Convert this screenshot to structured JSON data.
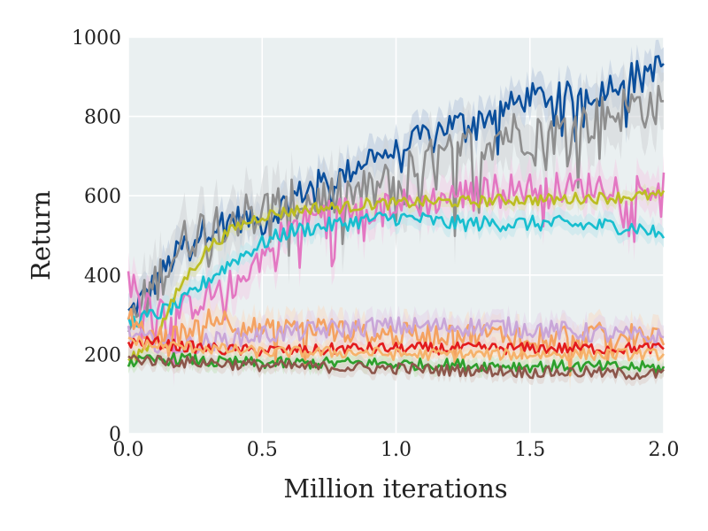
{
  "chart_data": {
    "type": "line",
    "title": "",
    "xlabel": "Million iterations",
    "ylabel": "Return",
    "xlim": [
      0.0,
      2.0
    ],
    "ylim": [
      0,
      1000
    ],
    "xticks": [
      0.0,
      0.5,
      1.0,
      1.5,
      2.0
    ],
    "xtick_labels": [
      "0.0",
      "0.5",
      "1.0",
      "1.5",
      "2.0"
    ],
    "yticks": [
      0,
      200,
      400,
      600,
      800,
      1000
    ],
    "ytick_labels": [
      "0",
      "200",
      "400",
      "600",
      "800",
      "1000"
    ],
    "grid": true,
    "background": "#eaf0f1",
    "legend": "none",
    "shaded_bands": true,
    "series": [
      {
        "color": "#0b4f9c",
        "band": "#b8c9dc",
        "x": [
          0.0,
          0.1,
          0.2,
          0.3,
          0.4,
          0.5,
          0.6,
          0.7,
          0.8,
          0.9,
          1.0,
          1.1,
          1.2,
          1.3,
          1.4,
          1.5,
          1.6,
          1.7,
          1.8,
          1.9,
          2.0
        ],
        "values": [
          300,
          380,
          470,
          520,
          545,
          530,
          590,
          630,
          650,
          700,
          710,
          750,
          780,
          790,
          820,
          850,
          850,
          860,
          880,
          910,
          930
        ],
        "spread": 35
      },
      {
        "color": "#8e8e8e",
        "band": "#d0d3d6",
        "x": [
          0.0,
          0.1,
          0.2,
          0.3,
          0.4,
          0.5,
          0.6,
          0.7,
          0.8,
          0.9,
          1.0,
          1.1,
          1.2,
          1.3,
          1.4,
          1.5,
          1.6,
          1.7,
          1.8,
          1.9,
          2.0
        ],
        "values": [
          260,
          380,
          480,
          530,
          550,
          560,
          580,
          590,
          600,
          610,
          640,
          680,
          700,
          730,
          760,
          760,
          760,
          780,
          810,
          830,
          820
        ],
        "spread": 60
      },
      {
        "color": "#e377c2",
        "band": "#f0cfe6",
        "x": [
          0.0,
          0.1,
          0.2,
          0.3,
          0.4,
          0.5,
          0.6,
          0.7,
          0.8,
          0.9,
          1.0,
          1.1,
          1.2,
          1.3,
          1.4,
          1.5,
          1.6,
          1.7,
          1.8,
          1.9,
          2.0
        ],
        "values": [
          390,
          320,
          310,
          350,
          380,
          450,
          520,
          550,
          560,
          570,
          580,
          580,
          600,
          610,
          620,
          620,
          620,
          620,
          630,
          620,
          620
        ],
        "spread": 40
      },
      {
        "color": "#17becf",
        "band": "#bfe5eb",
        "x": [
          0.0,
          0.1,
          0.2,
          0.3,
          0.4,
          0.5,
          0.6,
          0.7,
          0.8,
          0.9,
          1.0,
          1.1,
          1.2,
          1.3,
          1.4,
          1.5,
          1.6,
          1.7,
          1.8,
          1.9,
          2.0
        ],
        "values": [
          280,
          300,
          330,
          390,
          440,
          480,
          510,
          520,
          530,
          540,
          545,
          540,
          530,
          530,
          530,
          530,
          530,
          525,
          525,
          520,
          500
        ],
        "spread": 20
      },
      {
        "color": "#bcbd22",
        "band": "#dfe2b3",
        "x": [
          0.0,
          0.1,
          0.2,
          0.3,
          0.4,
          0.5,
          0.6,
          0.7,
          0.8,
          0.9,
          1.0,
          1.1,
          1.2,
          1.3,
          1.4,
          1.5,
          1.6,
          1.7,
          1.8,
          1.9,
          2.0
        ],
        "values": [
          180,
          240,
          380,
          470,
          520,
          550,
          560,
          570,
          570,
          580,
          580,
          585,
          585,
          585,
          590,
          590,
          590,
          595,
          595,
          600,
          600
        ],
        "spread": 15
      },
      {
        "color": "#f4a261",
        "band": "#f5dcc6",
        "x": [
          0.0,
          0.1,
          0.2,
          0.3,
          0.4,
          0.5,
          0.6,
          0.7,
          0.8,
          0.9,
          1.0,
          1.1,
          1.2,
          1.3,
          1.4,
          1.5,
          1.6,
          1.7,
          1.8,
          1.9,
          2.0
        ],
        "values": [
          300,
          240,
          250,
          300,
          280,
          260,
          260,
          270,
          260,
          250,
          250,
          250,
          250,
          250,
          250,
          250,
          250,
          250,
          250,
          250,
          250
        ],
        "spread": 30
      },
      {
        "color": "#c9a6d8",
        "band": "#e4d6ea",
        "x": [
          0.0,
          0.1,
          0.2,
          0.3,
          0.4,
          0.5,
          0.6,
          0.7,
          0.8,
          0.9,
          1.0,
          1.1,
          1.2,
          1.3,
          1.4,
          1.5,
          1.6,
          1.7,
          1.8,
          1.9,
          2.0
        ],
        "values": [
          250,
          230,
          220,
          230,
          240,
          250,
          255,
          260,
          265,
          270,
          270,
          270,
          270,
          270,
          270,
          265,
          260,
          255,
          250,
          245,
          240
        ],
        "spread": 25
      },
      {
        "color": "#e31a1c",
        "band": "#f3c6c3",
        "x": [
          0.0,
          0.1,
          0.2,
          0.3,
          0.4,
          0.5,
          0.6,
          0.7,
          0.8,
          0.9,
          1.0,
          1.1,
          1.2,
          1.3,
          1.4,
          1.5,
          1.6,
          1.7,
          1.8,
          1.9,
          2.0
        ],
        "values": [
          230,
          230,
          220,
          215,
          210,
          210,
          210,
          210,
          215,
          215,
          215,
          215,
          215,
          215,
          215,
          215,
          215,
          215,
          215,
          215,
          215
        ],
        "spread": 15
      },
      {
        "color": "#f6b26b",
        "band": "#f8e1c3",
        "x": [
          0.0,
          0.1,
          0.2,
          0.3,
          0.4,
          0.5,
          0.6,
          0.7,
          0.8,
          0.9,
          1.0,
          1.1,
          1.2,
          1.3,
          1.4,
          1.5,
          1.6,
          1.7,
          1.8,
          1.9,
          2.0
        ],
        "values": [
          240,
          220,
          220,
          215,
          210,
          205,
          205,
          205,
          205,
          205,
          200,
          200,
          200,
          200,
          200,
          200,
          200,
          200,
          200,
          200,
          200
        ],
        "spread": 15
      },
      {
        "color": "#2ca02c",
        "band": "#c7e3c0",
        "x": [
          0.0,
          0.1,
          0.2,
          0.3,
          0.4,
          0.5,
          0.6,
          0.7,
          0.8,
          0.9,
          1.0,
          1.1,
          1.2,
          1.3,
          1.4,
          1.5,
          1.6,
          1.7,
          1.8,
          1.9,
          2.0
        ],
        "values": [
          180,
          185,
          190,
          180,
          180,
          178,
          178,
          178,
          178,
          178,
          175,
          175,
          175,
          172,
          172,
          170,
          170,
          170,
          168,
          168,
          165
        ],
        "spread": 15
      },
      {
        "color": "#8c564b",
        "band": "#dccfca",
        "x": [
          0.0,
          0.1,
          0.2,
          0.3,
          0.4,
          0.5,
          0.6,
          0.7,
          0.8,
          0.9,
          1.0,
          1.1,
          1.2,
          1.3,
          1.4,
          1.5,
          1.6,
          1.7,
          1.8,
          1.9,
          2.0
        ],
        "values": [
          190,
          185,
          180,
          180,
          175,
          172,
          170,
          168,
          168,
          165,
          165,
          162,
          160,
          160,
          158,
          155,
          155,
          155,
          152,
          150,
          150
        ],
        "spread": 15
      }
    ]
  }
}
